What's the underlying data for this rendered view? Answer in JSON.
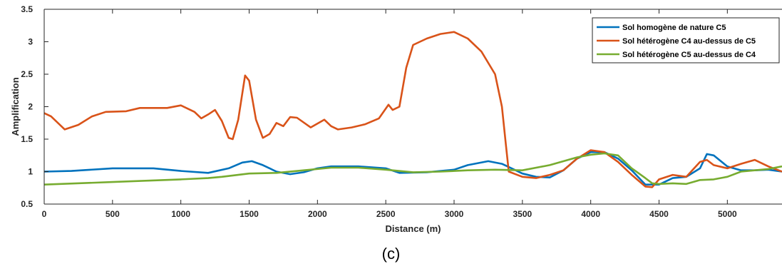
{
  "caption": "(c)",
  "chart_data": {
    "type": "line",
    "xlabel": "Distance (m)",
    "ylabel": "Amplification",
    "xlim": [
      0,
      5400
    ],
    "ylim": [
      0.5,
      3.5
    ],
    "xticks": [
      0,
      500,
      1000,
      1500,
      2000,
      2500,
      3000,
      3500,
      4000,
      4500,
      5000
    ],
    "yticks": [
      0.5,
      1,
      1.5,
      2,
      2.5,
      3,
      3.5
    ],
    "grid": false,
    "legend_position": "top-right",
    "series": [
      {
        "name": "Sol homogène de nature C5",
        "color": "#0072BD",
        "points": [
          [
            0,
            1.0
          ],
          [
            200,
            1.01
          ],
          [
            500,
            1.05
          ],
          [
            800,
            1.05
          ],
          [
            1000,
            1.01
          ],
          [
            1200,
            0.98
          ],
          [
            1350,
            1.05
          ],
          [
            1450,
            1.14
          ],
          [
            1520,
            1.16
          ],
          [
            1600,
            1.1
          ],
          [
            1700,
            1.0
          ],
          [
            1800,
            0.96
          ],
          [
            1900,
            0.99
          ],
          [
            2000,
            1.05
          ],
          [
            2100,
            1.08
          ],
          [
            2300,
            1.08
          ],
          [
            2500,
            1.05
          ],
          [
            2600,
            0.98
          ],
          [
            2800,
            0.99
          ],
          [
            3000,
            1.03
          ],
          [
            3100,
            1.1
          ],
          [
            3250,
            1.16
          ],
          [
            3350,
            1.12
          ],
          [
            3400,
            1.07
          ],
          [
            3500,
            0.97
          ],
          [
            3600,
            0.92
          ],
          [
            3700,
            0.91
          ],
          [
            3800,
            1.02
          ],
          [
            3900,
            1.2
          ],
          [
            4000,
            1.3
          ],
          [
            4100,
            1.3
          ],
          [
            4200,
            1.2
          ],
          [
            4300,
            1.02
          ],
          [
            4400,
            0.8
          ],
          [
            4500,
            0.8
          ],
          [
            4600,
            0.9
          ],
          [
            4700,
            0.92
          ],
          [
            4800,
            1.05
          ],
          [
            4850,
            1.27
          ],
          [
            4900,
            1.25
          ],
          [
            5000,
            1.08
          ],
          [
            5100,
            1.02
          ],
          [
            5200,
            1.02
          ],
          [
            5300,
            1.03
          ],
          [
            5400,
            1.0
          ]
        ]
      },
      {
        "name": "Sol hétérogène C4 au-dessus de C5",
        "color": "#D95319",
        "points": [
          [
            0,
            1.9
          ],
          [
            50,
            1.85
          ],
          [
            150,
            1.65
          ],
          [
            250,
            1.72
          ],
          [
            350,
            1.85
          ],
          [
            450,
            1.92
          ],
          [
            600,
            1.93
          ],
          [
            700,
            1.98
          ],
          [
            900,
            1.98
          ],
          [
            1000,
            2.02
          ],
          [
            1100,
            1.92
          ],
          [
            1150,
            1.82
          ],
          [
            1200,
            1.88
          ],
          [
            1250,
            1.95
          ],
          [
            1300,
            1.78
          ],
          [
            1350,
            1.52
          ],
          [
            1380,
            1.5
          ],
          [
            1420,
            1.8
          ],
          [
            1470,
            2.48
          ],
          [
            1500,
            2.4
          ],
          [
            1550,
            1.8
          ],
          [
            1600,
            1.52
          ],
          [
            1650,
            1.58
          ],
          [
            1700,
            1.75
          ],
          [
            1750,
            1.7
          ],
          [
            1800,
            1.84
          ],
          [
            1850,
            1.83
          ],
          [
            1950,
            1.68
          ],
          [
            2050,
            1.8
          ],
          [
            2100,
            1.7
          ],
          [
            2150,
            1.65
          ],
          [
            2250,
            1.68
          ],
          [
            2350,
            1.73
          ],
          [
            2450,
            1.82
          ],
          [
            2520,
            2.03
          ],
          [
            2550,
            1.95
          ],
          [
            2600,
            2.0
          ],
          [
            2650,
            2.6
          ],
          [
            2700,
            2.95
          ],
          [
            2800,
            3.05
          ],
          [
            2900,
            3.12
          ],
          [
            3000,
            3.15
          ],
          [
            3100,
            3.05
          ],
          [
            3200,
            2.85
          ],
          [
            3300,
            2.5
          ],
          [
            3350,
            2.0
          ],
          [
            3380,
            1.4
          ],
          [
            3400,
            1.0
          ],
          [
            3500,
            0.92
          ],
          [
            3600,
            0.9
          ],
          [
            3700,
            0.95
          ],
          [
            3800,
            1.02
          ],
          [
            3900,
            1.2
          ],
          [
            4000,
            1.33
          ],
          [
            4100,
            1.3
          ],
          [
            4200,
            1.15
          ],
          [
            4300,
            0.95
          ],
          [
            4400,
            0.77
          ],
          [
            4450,
            0.76
          ],
          [
            4500,
            0.88
          ],
          [
            4600,
            0.95
          ],
          [
            4700,
            0.92
          ],
          [
            4800,
            1.15
          ],
          [
            4850,
            1.18
          ],
          [
            4900,
            1.1
          ],
          [
            5000,
            1.05
          ],
          [
            5100,
            1.12
          ],
          [
            5200,
            1.18
          ],
          [
            5300,
            1.08
          ],
          [
            5400,
            1.0
          ]
        ]
      },
      {
        "name": "Sol hétérogène C5 au-dessus de C4",
        "color": "#77AC30",
        "points": [
          [
            0,
            0.8
          ],
          [
            500,
            0.84
          ],
          [
            1000,
            0.88
          ],
          [
            1200,
            0.9
          ],
          [
            1300,
            0.92
          ],
          [
            1500,
            0.97
          ],
          [
            1700,
            0.98
          ],
          [
            1900,
            1.02
          ],
          [
            2100,
            1.06
          ],
          [
            2300,
            1.06
          ],
          [
            2500,
            1.03
          ],
          [
            2700,
            0.99
          ],
          [
            2900,
            1.0
          ],
          [
            3100,
            1.02
          ],
          [
            3300,
            1.03
          ],
          [
            3500,
            1.02
          ],
          [
            3700,
            1.1
          ],
          [
            3900,
            1.22
          ],
          [
            4000,
            1.26
          ],
          [
            4100,
            1.28
          ],
          [
            4200,
            1.25
          ],
          [
            4300,
            1.05
          ],
          [
            4400,
            0.9
          ],
          [
            4450,
            0.82
          ],
          [
            4500,
            0.81
          ],
          [
            4600,
            0.82
          ],
          [
            4700,
            0.81
          ],
          [
            4800,
            0.87
          ],
          [
            4900,
            0.88
          ],
          [
            5000,
            0.92
          ],
          [
            5100,
            1.0
          ],
          [
            5200,
            1.02
          ],
          [
            5300,
            1.04
          ],
          [
            5400,
            1.08
          ]
        ]
      }
    ]
  }
}
